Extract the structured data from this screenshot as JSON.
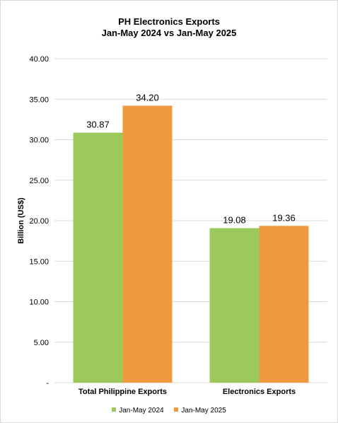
{
  "colors": {
    "series_2024": "#9bc95b",
    "series_2025": "#ef9a3e",
    "grid": "#d9d9d9",
    "text": "#000000"
  },
  "chart_data": {
    "type": "bar",
    "title": "PH Electronics Exports",
    "subtitle": "Jan-May 2024 vs Jan-May 2025",
    "xlabel": "",
    "ylabel": "Billion (US$)",
    "ylim": [
      0,
      40
    ],
    "ytick_values": [
      0,
      5,
      10,
      15,
      20,
      25,
      30,
      35,
      40
    ],
    "ytick_labels": [
      "-",
      "5.00",
      "10.00",
      "15.00",
      "20.00",
      "25.00",
      "30.00",
      "35.00",
      "40.00"
    ],
    "categories": [
      "Total Philippine Exports",
      "Electronics Exports"
    ],
    "series": [
      {
        "name": "Jan-May 2024",
        "values": [
          30.87,
          19.08
        ],
        "labels": [
          "30.87",
          "19.08"
        ]
      },
      {
        "name": "Jan-May 2025",
        "values": [
          34.2,
          19.36
        ],
        "labels": [
          "34.20",
          "19.36"
        ]
      }
    ],
    "grid": true,
    "legend_position": "bottom"
  }
}
